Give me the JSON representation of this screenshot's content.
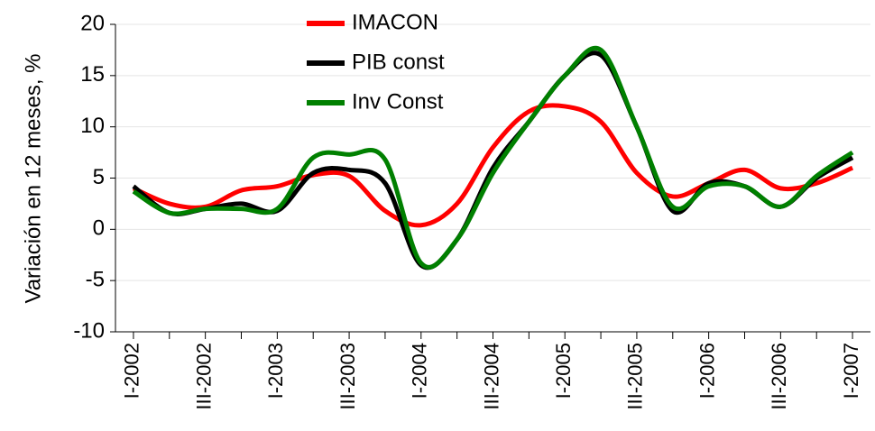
{
  "chart_data": {
    "type": "line",
    "y_label": "Variación en 12 meses, %",
    "categories": [
      "I-2002",
      null,
      "III-2002",
      null,
      "I-2003",
      null,
      "III-2003",
      null,
      "I-2004",
      null,
      "III-2004",
      null,
      "I-2005",
      null,
      "III-2005",
      null,
      "I-2006",
      null,
      "III-2006",
      null,
      "I-2007"
    ],
    "series": [
      {
        "name": "IMACON",
        "color": "#ff0000",
        "values": [
          4,
          2.5,
          2.2,
          3.8,
          4.2,
          5.3,
          5.2,
          1.8,
          0.4,
          2.5,
          8,
          11.5,
          12,
          10.5,
          5.5,
          3.2,
          4.5,
          5.8,
          4,
          4.5,
          6
        ]
      },
      {
        "name": "PIB const",
        "color": "#000000",
        "values": [
          4.2,
          1.6,
          2.0,
          2.5,
          1.8,
          5.5,
          5.8,
          4.5,
          -3.5,
          -1,
          6,
          10.5,
          15,
          17,
          10,
          1.8,
          4.5,
          4.2,
          2.2,
          5,
          7
        ]
      },
      {
        "name": "Inv Const",
        "color": "#008000",
        "values": [
          3.7,
          1.6,
          2.0,
          2.0,
          2.0,
          7.0,
          7.3,
          6.8,
          -3.3,
          -1,
          5.5,
          10.5,
          15,
          17.5,
          10,
          2.2,
          4.2,
          4.2,
          2.2,
          5.2,
          7.5
        ]
      }
    ],
    "ylim": [
      -10,
      20
    ],
    "yticks": [
      -10,
      -5,
      0,
      5,
      10,
      15,
      20
    ],
    "grid": true
  }
}
